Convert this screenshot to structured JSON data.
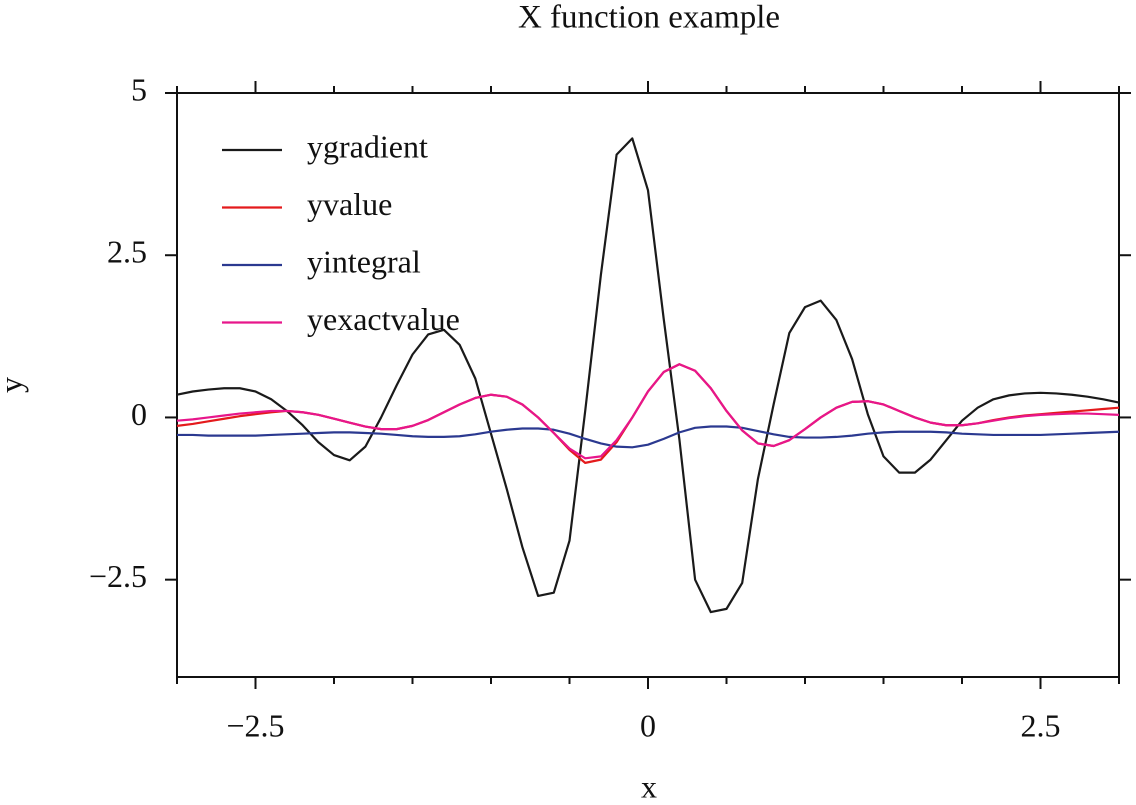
{
  "chart_data": {
    "type": "line",
    "title": "X function example",
    "xlabel": "x",
    "ylabel": "y",
    "x": [
      -3.0,
      -2.9,
      -2.8,
      -2.7,
      -2.6,
      -2.5,
      -2.4,
      -2.3,
      -2.2,
      -2.1,
      -2.0,
      -1.9,
      -1.8,
      -1.7,
      -1.6,
      -1.5,
      -1.4,
      -1.3,
      -1.2,
      -1.1,
      -1.0,
      -0.9,
      -0.8,
      -0.7,
      -0.6,
      -0.5,
      -0.4,
      -0.3,
      -0.2,
      -0.1,
      0.0,
      0.1,
      0.2,
      0.3,
      0.4,
      0.5,
      0.6,
      0.7,
      0.8,
      0.9,
      1.0,
      1.1,
      1.2,
      1.3,
      1.4,
      1.5,
      1.6,
      1.7,
      1.8,
      1.9,
      2.0,
      2.1,
      2.2,
      2.3,
      2.4,
      2.5,
      2.6,
      2.7,
      2.8,
      2.9,
      3.0
    ],
    "series": [
      {
        "name": "ygradient",
        "color": "#1a1a1a",
        "values": [
          0.35,
          0.4,
          0.43,
          0.45,
          0.45,
          0.4,
          0.28,
          0.1,
          -0.12,
          -0.38,
          -0.58,
          -0.66,
          -0.45,
          0.0,
          0.5,
          0.97,
          1.28,
          1.35,
          1.12,
          0.6,
          -0.25,
          -1.1,
          -2.0,
          -2.75,
          -2.7,
          -1.9,
          0.1,
          2.2,
          4.05,
          4.3,
          3.5,
          1.52,
          -0.34,
          -2.5,
          -3.0,
          -2.95,
          -2.55,
          -0.95,
          0.2,
          1.3,
          1.7,
          1.8,
          1.5,
          0.9,
          0.05,
          -0.6,
          -0.85,
          -0.85,
          -0.65,
          -0.35,
          -0.05,
          0.15,
          0.28,
          0.34,
          0.37,
          0.38,
          0.37,
          0.35,
          0.32,
          0.28,
          0.23
        ]
      },
      {
        "name": "yvalue",
        "color": "#e41a1c",
        "values": [
          -0.13,
          -0.1,
          -0.06,
          -0.02,
          0.02,
          0.05,
          0.08,
          0.1,
          0.08,
          0.04,
          -0.02,
          -0.08,
          -0.14,
          -0.18,
          -0.18,
          -0.13,
          -0.04,
          0.08,
          0.2,
          0.3,
          0.35,
          0.32,
          0.2,
          0.0,
          -0.24,
          -0.5,
          -0.7,
          -0.65,
          -0.38,
          0.0,
          0.4,
          0.7,
          0.82,
          0.72,
          0.45,
          0.1,
          -0.2,
          -0.4,
          -0.44,
          -0.35,
          -0.18,
          0.0,
          0.15,
          0.24,
          0.25,
          0.2,
          0.1,
          0.0,
          -0.08,
          -0.12,
          -0.12,
          -0.09,
          -0.04,
          0.0,
          0.03,
          0.05,
          0.07,
          0.09,
          0.11,
          0.13,
          0.15
        ]
      },
      {
        "name": "yintegral",
        "color": "#2b3990",
        "values": [
          -0.27,
          -0.27,
          -0.28,
          -0.28,
          -0.28,
          -0.28,
          -0.27,
          -0.26,
          -0.25,
          -0.24,
          -0.23,
          -0.23,
          -0.24,
          -0.25,
          -0.27,
          -0.29,
          -0.3,
          -0.3,
          -0.29,
          -0.26,
          -0.22,
          -0.19,
          -0.17,
          -0.17,
          -0.19,
          -0.25,
          -0.33,
          -0.4,
          -0.45,
          -0.46,
          -0.42,
          -0.33,
          -0.23,
          -0.16,
          -0.14,
          -0.14,
          -0.16,
          -0.21,
          -0.26,
          -0.3,
          -0.31,
          -0.31,
          -0.3,
          -0.28,
          -0.25,
          -0.23,
          -0.22,
          -0.22,
          -0.22,
          -0.23,
          -0.25,
          -0.26,
          -0.27,
          -0.27,
          -0.27,
          -0.27,
          -0.26,
          -0.25,
          -0.24,
          -0.23,
          -0.22
        ]
      },
      {
        "name": "yexactvalue",
        "color": "#e7168b",
        "values": [
          -0.05,
          -0.03,
          0.0,
          0.03,
          0.06,
          0.08,
          0.1,
          0.1,
          0.08,
          0.04,
          -0.02,
          -0.08,
          -0.14,
          -0.18,
          -0.18,
          -0.13,
          -0.04,
          0.08,
          0.2,
          0.3,
          0.35,
          0.32,
          0.2,
          0.0,
          -0.24,
          -0.48,
          -0.63,
          -0.6,
          -0.35,
          0.0,
          0.4,
          0.7,
          0.82,
          0.72,
          0.45,
          0.1,
          -0.2,
          -0.4,
          -0.44,
          -0.35,
          -0.18,
          0.0,
          0.15,
          0.24,
          0.25,
          0.2,
          0.1,
          0.0,
          -0.08,
          -0.12,
          -0.12,
          -0.09,
          -0.05,
          -0.01,
          0.02,
          0.04,
          0.05,
          0.06,
          0.06,
          0.05,
          0.04
        ]
      }
    ],
    "xlim": [
      -3,
      3
    ],
    "ylim": [
      -4,
      5
    ],
    "xticks": [
      {
        "value": -2.5,
        "label": "−2.5"
      },
      0,
      2.5
    ],
    "xminorticks": [
      -3,
      -2,
      -1.5,
      -1,
      -0.5,
      0.5,
      1,
      1.5,
      2,
      3
    ],
    "yticks": [
      5,
      2.5,
      0,
      {
        "value": -2.5,
        "label": "−2.5"
      }
    ],
    "legend": "upper left",
    "grid": false
  }
}
